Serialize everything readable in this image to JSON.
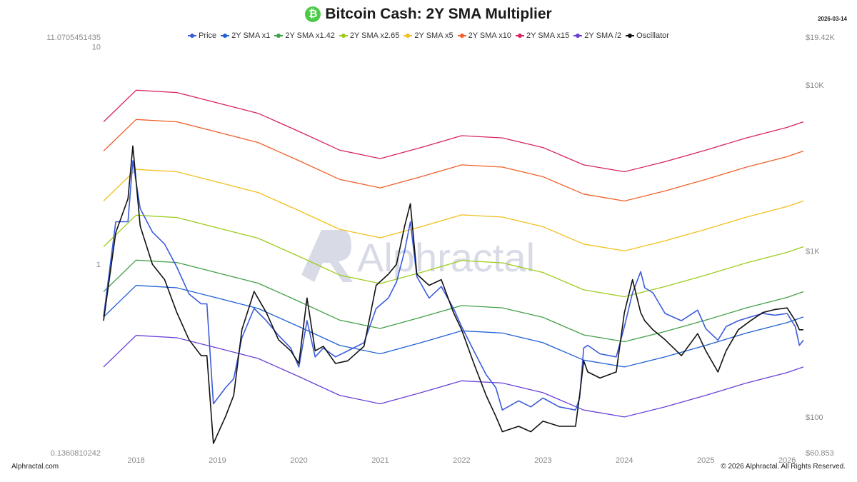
{
  "header": {
    "title": "Bitcoin Cash: 2Y SMA Multiplier",
    "logo_glyph": "₿",
    "date": "2026-03-14"
  },
  "footer": {
    "left": "Alphractal.com",
    "right": "© 2026 Alphractal. All Rights Reserved."
  },
  "watermark": "Alphractal",
  "chart_data": {
    "type": "line",
    "title": "Bitcoin Cash: 2Y SMA Multiplier",
    "x_ticks": [
      "2018",
      "2019",
      "2020",
      "2021",
      "2022",
      "2023",
      "2024",
      "2025",
      "2026"
    ],
    "x_range": [
      2017.6,
      2026.2
    ],
    "y_right_ticks": [
      "$19.42K",
      "$10K",
      "$1K",
      "$100",
      "$60.853"
    ],
    "y_right_range": [
      60.853,
      19420
    ],
    "y_right_scale": "log",
    "y_left_ticks": [
      "11.0705451435",
      "10",
      "1",
      "0.1360810242"
    ],
    "y_left_range": [
      0.1360810242,
      11.0705451435
    ],
    "y_left_scale": "log",
    "grid": false,
    "legend_position": "top-center",
    "series": [
      {
        "name": "Price",
        "axis": "right",
        "color": "#3b5bdb",
        "x": [
          2017.6,
          2017.75,
          2017.9,
          2017.96,
          2018.05,
          2018.2,
          2018.35,
          2018.5,
          2018.65,
          2018.8,
          2018.87,
          2018.95,
          2019.1,
          2019.2,
          2019.3,
          2019.45,
          2019.6,
          2019.75,
          2019.9,
          2020.0,
          2020.1,
          2020.2,
          2020.3,
          2020.45,
          2020.6,
          2020.8,
          2020.95,
          2021.1,
          2021.2,
          2021.3,
          2021.37,
          2021.45,
          2021.6,
          2021.75,
          2021.9,
          2022.0,
          2022.15,
          2022.3,
          2022.42,
          2022.5,
          2022.7,
          2022.85,
          2023.0,
          2023.2,
          2023.4,
          2023.45,
          2023.5,
          2023.55,
          2023.7,
          2023.9,
          2024.0,
          2024.1,
          2024.2,
          2024.25,
          2024.35,
          2024.5,
          2024.7,
          2024.9,
          2025.0,
          2025.15,
          2025.25,
          2025.4,
          2025.55,
          2025.7,
          2025.85,
          2026.0,
          2026.1,
          2026.15,
          2026.2
        ],
        "y": [
          400,
          1500,
          1500,
          3500,
          1800,
          1300,
          1100,
          800,
          550,
          480,
          480,
          120,
          150,
          170,
          300,
          450,
          380,
          310,
          260,
          200,
          380,
          230,
          260,
          230,
          250,
          280,
          450,
          520,
          650,
          1000,
          1500,
          700,
          520,
          610,
          450,
          350,
          250,
          180,
          150,
          110,
          125,
          115,
          130,
          115,
          110,
          130,
          260,
          270,
          240,
          230,
          350,
          560,
          750,
          600,
          560,
          420,
          380,
          440,
          340,
          290,
          350,
          380,
          400,
          420,
          410,
          420,
          350,
          270,
          290
        ]
      },
      {
        "name": "2Y SMA x1",
        "axis": "right",
        "color": "#1f5fd1",
        "x": [
          2017.6,
          2018.0,
          2018.5,
          2019.0,
          2019.5,
          2020.0,
          2020.5,
          2021.0,
          2021.5,
          2022.0,
          2022.5,
          2023.0,
          2023.5,
          2024.0,
          2024.5,
          2025.0,
          2025.5,
          2026.0,
          2026.2
        ],
        "y": [
          400,
          620,
          600,
          520,
          450,
          350,
          270,
          240,
          280,
          330,
          320,
          280,
          220,
          200,
          230,
          270,
          320,
          370,
          400
        ]
      },
      {
        "name": "2Y SMA x1.42",
        "axis": "right",
        "color": "#43a047",
        "x": [
          2017.6,
          2018.0,
          2018.5,
          2019.0,
          2019.5,
          2020.0,
          2020.5,
          2021.0,
          2021.5,
          2022.0,
          2022.5,
          2023.0,
          2023.5,
          2024.0,
          2024.5,
          2025.0,
          2025.5,
          2026.0,
          2026.2
        ],
        "y": [
          568,
          880,
          852,
          738,
          639,
          497,
          383,
          341,
          398,
          469,
          454,
          398,
          312,
          284,
          327,
          383,
          454,
          525,
          568
        ]
      },
      {
        "name": "2Y SMA x2.65",
        "axis": "right",
        "color": "#9ccc1c",
        "x": [
          2017.6,
          2018.0,
          2018.5,
          2019.0,
          2019.5,
          2020.0,
          2020.5,
          2021.0,
          2021.5,
          2022.0,
          2022.5,
          2023.0,
          2023.5,
          2024.0,
          2024.5,
          2025.0,
          2025.5,
          2026.0,
          2026.2
        ],
        "y": [
          1060,
          1643,
          1590,
          1378,
          1193,
          928,
          716,
          636,
          742,
          875,
          848,
          742,
          583,
          530,
          610,
          716,
          848,
          981,
          1060
        ]
      },
      {
        "name": "2Y SMA x5",
        "axis": "right",
        "color": "#f2bf1c",
        "x": [
          2017.6,
          2018.0,
          2018.5,
          2019.0,
          2019.5,
          2020.0,
          2020.5,
          2021.0,
          2021.5,
          2022.0,
          2022.5,
          2023.0,
          2023.5,
          2024.0,
          2024.5,
          2025.0,
          2025.5,
          2026.0,
          2026.2
        ],
        "y": [
          2000,
          3100,
          3000,
          2600,
          2250,
          1750,
          1350,
          1200,
          1400,
          1650,
          1600,
          1400,
          1100,
          1000,
          1150,
          1350,
          1600,
          1850,
          2000
        ]
      },
      {
        "name": "2Y SMA x10",
        "axis": "right",
        "color": "#f0602a",
        "x": [
          2017.6,
          2018.0,
          2018.5,
          2019.0,
          2019.5,
          2020.0,
          2020.5,
          2021.0,
          2021.5,
          2022.0,
          2022.5,
          2023.0,
          2023.5,
          2024.0,
          2024.5,
          2025.0,
          2025.5,
          2026.0,
          2026.2
        ],
        "y": [
          4000,
          6200,
          6000,
          5200,
          4500,
          3500,
          2700,
          2400,
          2800,
          3300,
          3200,
          2800,
          2200,
          2000,
          2300,
          2700,
          3200,
          3700,
          4000
        ]
      },
      {
        "name": "2Y SMA x15",
        "axis": "right",
        "color": "#d6245e",
        "x": [
          2017.6,
          2018.0,
          2018.5,
          2019.0,
          2019.5,
          2020.0,
          2020.5,
          2021.0,
          2021.5,
          2022.0,
          2022.5,
          2023.0,
          2023.5,
          2024.0,
          2024.5,
          2025.0,
          2025.5,
          2026.0,
          2026.2
        ],
        "y": [
          6000,
          9300,
          9000,
          7800,
          6750,
          5250,
          4050,
          3600,
          4200,
          4950,
          4800,
          4200,
          3300,
          3000,
          3450,
          4050,
          4800,
          5550,
          6000
        ]
      },
      {
        "name": "2Y SMA /2",
        "axis": "right",
        "color": "#6a3fd6",
        "x": [
          2017.6,
          2018.0,
          2018.5,
          2019.0,
          2019.5,
          2020.0,
          2020.5,
          2021.0,
          2021.5,
          2022.0,
          2022.5,
          2023.0,
          2023.5,
          2024.0,
          2024.5,
          2025.0,
          2025.5,
          2026.0,
          2026.2
        ],
        "y": [
          200,
          310,
          300,
          260,
          225,
          175,
          135,
          120,
          140,
          165,
          160,
          140,
          110,
          100,
          115,
          135,
          160,
          185,
          200
        ]
      },
      {
        "name": "Oscillator",
        "axis": "left",
        "color": "#111111",
        "x": [
          2017.6,
          2017.75,
          2017.9,
          2017.96,
          2018.05,
          2018.2,
          2018.35,
          2018.5,
          2018.65,
          2018.8,
          2018.87,
          2018.95,
          2019.1,
          2019.2,
          2019.3,
          2019.45,
          2019.6,
          2019.75,
          2019.9,
          2020.0,
          2020.1,
          2020.2,
          2020.3,
          2020.45,
          2020.6,
          2020.8,
          2020.95,
          2021.1,
          2021.2,
          2021.3,
          2021.37,
          2021.45,
          2021.6,
          2021.75,
          2021.9,
          2022.0,
          2022.15,
          2022.3,
          2022.42,
          2022.5,
          2022.7,
          2022.85,
          2023.0,
          2023.2,
          2023.4,
          2023.45,
          2023.5,
          2023.55,
          2023.7,
          2023.9,
          2024.0,
          2024.1,
          2024.2,
          2024.25,
          2024.35,
          2024.5,
          2024.7,
          2024.9,
          2025.0,
          2025.15,
          2025.25,
          2025.4,
          2025.55,
          2025.7,
          2025.85,
          2026.0,
          2026.1,
          2026.15,
          2026.2
        ],
        "y": [
          0.55,
          1.4,
          2.0,
          3.5,
          1.5,
          1.0,
          0.85,
          0.6,
          0.45,
          0.38,
          0.38,
          0.15,
          0.2,
          0.25,
          0.5,
          0.75,
          0.6,
          0.45,
          0.4,
          0.35,
          0.7,
          0.4,
          0.42,
          0.35,
          0.36,
          0.42,
          0.8,
          0.9,
          1.0,
          1.5,
          1.9,
          0.9,
          0.8,
          0.85,
          0.6,
          0.5,
          0.35,
          0.25,
          0.2,
          0.17,
          0.18,
          0.17,
          0.19,
          0.18,
          0.18,
          0.25,
          0.36,
          0.32,
          0.3,
          0.32,
          0.6,
          0.85,
          0.6,
          0.55,
          0.5,
          0.45,
          0.38,
          0.48,
          0.4,
          0.32,
          0.4,
          0.5,
          0.55,
          0.6,
          0.62,
          0.63,
          0.55,
          0.5,
          0.5
        ]
      }
    ]
  }
}
